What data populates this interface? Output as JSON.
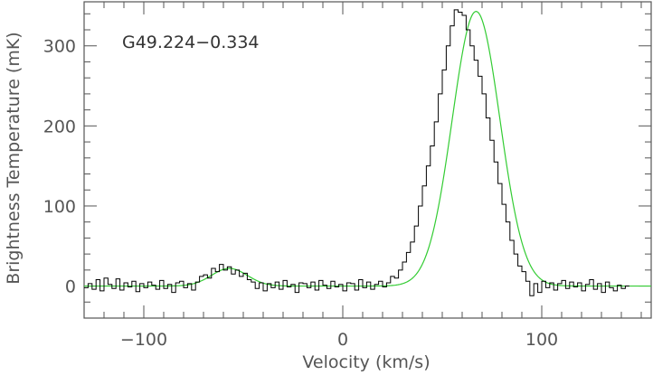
{
  "chart_data": {
    "type": "line",
    "title": "",
    "annotation": "G49.224−0.334",
    "xlabel": "Velocity (km/s)",
    "ylabel": "Brightness Temperature (mK)",
    "xlim": [
      -130,
      155
    ],
    "ylim": [
      -40,
      355
    ],
    "x_ticks": [
      -100,
      0,
      100
    ],
    "y_ticks": [
      0,
      100,
      200,
      300
    ],
    "x_tick_labels": [
      "−100",
      "0",
      "100"
    ],
    "y_tick_labels": [
      "0",
      "100",
      "200",
      "300"
    ],
    "grid": false,
    "legend": "none",
    "series": [
      {
        "style": "step",
        "color": "#000000",
        "channel_width": 2,
        "x_start": -130,
        "values": [
          -2,
          3,
          -4,
          8,
          -6,
          10,
          2,
          -3,
          9,
          -5,
          4,
          -1,
          6,
          -7,
          3,
          -2,
          5,
          1,
          -4,
          7,
          -3,
          2,
          -8,
          4,
          6,
          -2,
          3,
          -5,
          5,
          12,
          14,
          10,
          22,
          18,
          27,
          20,
          24,
          15,
          20,
          12,
          16,
          8,
          5,
          -3,
          4,
          -6,
          3,
          -2,
          5,
          -4,
          7,
          -1,
          2,
          -8,
          4,
          3,
          -2,
          5,
          -5,
          7,
          1,
          -3,
          6,
          -1,
          2,
          -6,
          4,
          3,
          -5,
          8,
          -2,
          5,
          -4,
          2,
          6,
          -1,
          4,
          12,
          10,
          20,
          30,
          42,
          55,
          75,
          100,
          125,
          150,
          175,
          205,
          240,
          270,
          300,
          325,
          345,
          342,
          338,
          320,
          300,
          282,
          262,
          240,
          210,
          182,
          155,
          128,
          102,
          80,
          57,
          40,
          25,
          18,
          6,
          -12,
          3,
          -8,
          6,
          -2,
          4,
          -5,
          3,
          7,
          -3,
          5,
          -1,
          4,
          -6,
          2,
          8,
          -4,
          3,
          -8,
          5,
          -2,
          -6,
          1,
          -3,
          0
        ]
      },
      {
        "style": "line",
        "color": "#33cc33",
        "type": "gaussian_fit",
        "components": [
          {
            "amplitude": 22,
            "center": -57,
            "sigma": 9
          },
          {
            "amplitude": 343,
            "center": 67,
            "sigma": 12
          }
        ]
      }
    ]
  }
}
